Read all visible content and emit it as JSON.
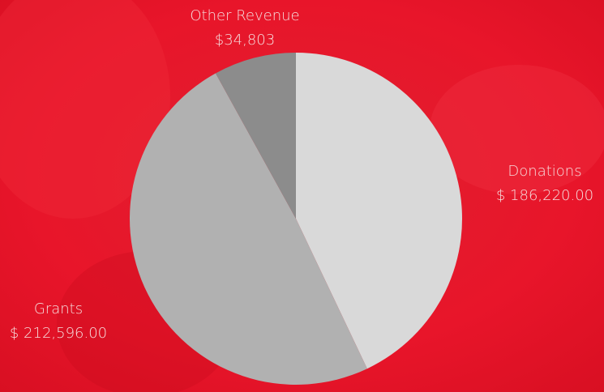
{
  "chart_data": {
    "type": "pie",
    "categories": [
      "Donations",
      "Grants",
      "Other Revenue"
    ],
    "values": [
      186220,
      212596,
      34803
    ],
    "value_labels": [
      "$ 186,220.00",
      "$ 212,596.00",
      "$34,803"
    ],
    "colors": [
      "#d9d9d9",
      "#b1b1b1",
      "#8c8c8c"
    ]
  }
}
